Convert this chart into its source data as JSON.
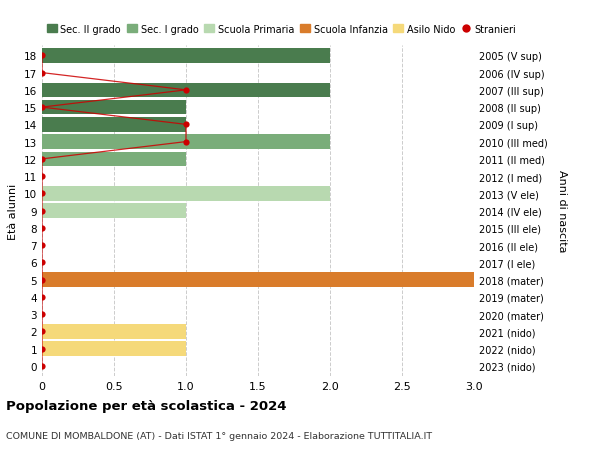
{
  "ages": [
    18,
    17,
    16,
    15,
    14,
    13,
    12,
    11,
    10,
    9,
    8,
    7,
    6,
    5,
    4,
    3,
    2,
    1,
    0
  ],
  "right_labels": [
    "2005 (V sup)",
    "2006 (IV sup)",
    "2007 (III sup)",
    "2008 (II sup)",
    "2009 (I sup)",
    "2010 (III med)",
    "2011 (II med)",
    "2012 (I med)",
    "2013 (V ele)",
    "2014 (IV ele)",
    "2015 (III ele)",
    "2016 (II ele)",
    "2017 (I ele)",
    "2018 (mater)",
    "2019 (mater)",
    "2020 (mater)",
    "2021 (nido)",
    "2022 (nido)",
    "2023 (nido)"
  ],
  "bar_data": [
    {
      "age": 18,
      "value": 2.0,
      "color": "#4a7c4e"
    },
    {
      "age": 17,
      "value": 0,
      "color": "#4a7c4e"
    },
    {
      "age": 16,
      "value": 2.0,
      "color": "#4a7c4e"
    },
    {
      "age": 15,
      "value": 1.0,
      "color": "#4a7c4e"
    },
    {
      "age": 14,
      "value": 1.0,
      "color": "#4a7c4e"
    },
    {
      "age": 13,
      "value": 2.0,
      "color": "#7aad7a"
    },
    {
      "age": 12,
      "value": 1.0,
      "color": "#7aad7a"
    },
    {
      "age": 11,
      "value": 0,
      "color": "#7aad7a"
    },
    {
      "age": 10,
      "value": 2.0,
      "color": "#b8d9b0"
    },
    {
      "age": 9,
      "value": 1.0,
      "color": "#b8d9b0"
    },
    {
      "age": 8,
      "value": 0,
      "color": "#b8d9b0"
    },
    {
      "age": 7,
      "value": 0,
      "color": "#b8d9b0"
    },
    {
      "age": 6,
      "value": 0,
      "color": "#b8d9b0"
    },
    {
      "age": 5,
      "value": 3.0,
      "color": "#d97c2b"
    },
    {
      "age": 4,
      "value": 0,
      "color": "#d97c2b"
    },
    {
      "age": 3,
      "value": 0,
      "color": "#d97c2b"
    },
    {
      "age": 2,
      "value": 1.0,
      "color": "#f5d97a"
    },
    {
      "age": 1,
      "value": 1.0,
      "color": "#f5d97a"
    },
    {
      "age": 0,
      "value": 0,
      "color": "#f5d97a"
    }
  ],
  "stranieri_ages": [
    18,
    17,
    16,
    15,
    14,
    13,
    12,
    11,
    10,
    9,
    8,
    7,
    6,
    5,
    4,
    3,
    2,
    1,
    0
  ],
  "stranieri_vals": [
    0,
    0,
    1,
    0,
    1,
    1,
    0,
    0,
    0,
    0,
    0,
    0,
    0,
    0,
    0,
    0,
    0,
    0,
    0
  ],
  "legend": [
    {
      "label": "Sec. II grado",
      "color": "#4a7c4e",
      "type": "patch"
    },
    {
      "label": "Sec. I grado",
      "color": "#7aad7a",
      "type": "patch"
    },
    {
      "label": "Scuola Primaria",
      "color": "#b8d9b0",
      "type": "patch"
    },
    {
      "label": "Scuola Infanzia",
      "color": "#d97c2b",
      "type": "patch"
    },
    {
      "label": "Asilo Nido",
      "color": "#f5d97a",
      "type": "patch"
    },
    {
      "label": "Stranieri",
      "color": "#cc0000",
      "type": "dot"
    }
  ],
  "ylabel_left": "Età alunni",
  "ylabel_right": "Anni di nascita",
  "title": "Popolazione per età scolastica - 2024",
  "subtitle": "COMUNE DI MOMBALDONE (AT) - Dati ISTAT 1° gennaio 2024 - Elaborazione TUTTITALIA.IT",
  "xlim": [
    0,
    3.0
  ],
  "xticks": [
    0,
    0.5,
    1.0,
    1.5,
    2.0,
    2.5,
    3.0
  ],
  "xtick_labels": [
    "0",
    "0.5",
    "1.0",
    "1.5",
    "2.0",
    "2.5",
    "3.0"
  ],
  "background_color": "#ffffff",
  "grid_color": "#cccccc",
  "stranieri_color": "#cc0000",
  "bar_height": 0.85
}
